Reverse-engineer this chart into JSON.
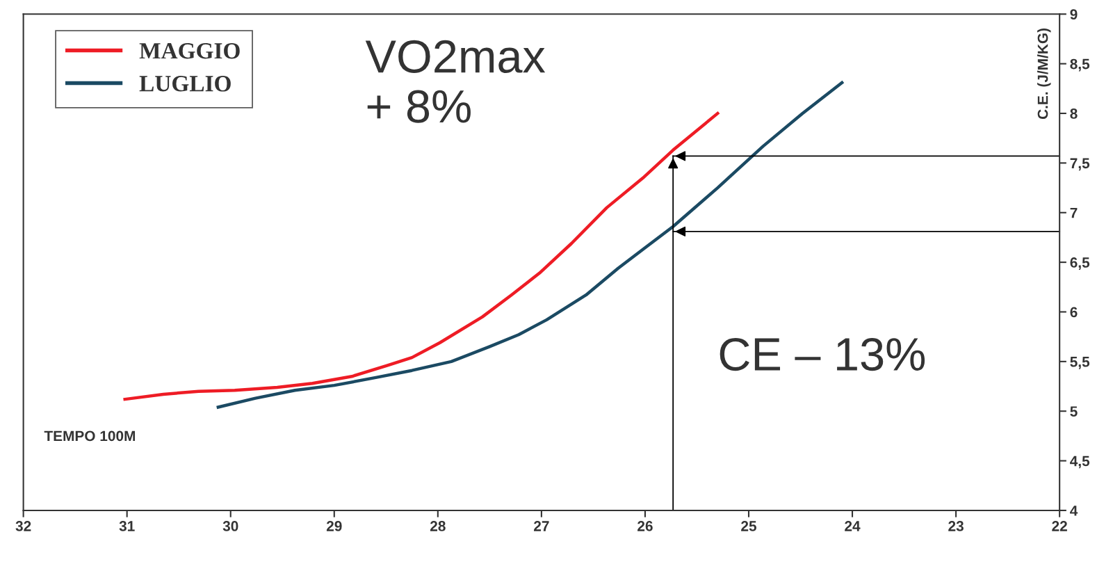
{
  "chart_data": {
    "type": "line",
    "xlabel": "TEMPO 100M",
    "ylabel": "C.E. (J/M/KG)",
    "xlim": [
      32,
      22
    ],
    "xticks": [
      32,
      31,
      30,
      29,
      28,
      27,
      26,
      25,
      24,
      23,
      22
    ],
    "ylim": [
      4,
      9
    ],
    "yticks": [
      4,
      {
        "value": 4.5,
        "label": "4,5"
      },
      5,
      {
        "value": 5.5,
        "label": "5,5"
      },
      6,
      {
        "value": 6.5,
        "label": "6,5"
      },
      7,
      {
        "value": 7.5,
        "label": "7,5"
      },
      8,
      {
        "value": 8.5,
        "label": "8,5"
      },
      9
    ],
    "grid": false,
    "legend": "top left",
    "marker": "none",
    "line_style": "solid",
    "series": [
      {
        "name": "MAGGIO",
        "color": "#ee1c25",
        "x": [
          31.02,
          30.65,
          30.31,
          29.96,
          29.55,
          29.21,
          28.83,
          28.49,
          28.25,
          27.98,
          27.57,
          27.29,
          27.02,
          26.71,
          26.37,
          26.02,
          25.73,
          25.3
        ],
        "values": [
          5.12,
          5.17,
          5.2,
          5.21,
          5.24,
          5.28,
          5.35,
          5.46,
          5.54,
          5.69,
          5.95,
          6.17,
          6.39,
          6.69,
          7.05,
          7.35,
          7.63,
          8.0
        ]
      },
      {
        "name": "LUGLIO",
        "color": "#1b4a63",
        "x": [
          30.12,
          29.76,
          29.38,
          29.0,
          28.59,
          28.25,
          27.87,
          27.5,
          27.22,
          26.95,
          26.57,
          26.26,
          26.02,
          25.73,
          25.3,
          24.86,
          24.48,
          24.1
        ],
        "values": [
          5.04,
          5.13,
          5.21,
          5.26,
          5.34,
          5.41,
          5.5,
          5.65,
          5.77,
          5.92,
          6.17,
          6.44,
          6.63,
          6.86,
          7.25,
          7.67,
          8.0,
          8.31
        ]
      }
    ],
    "ref_lines": [
      {
        "axis": "x",
        "value": 25.73,
        "color": "#000000"
      },
      {
        "axis": "y",
        "value": 7.57,
        "color": "#000000"
      },
      {
        "axis": "y",
        "value": 6.81,
        "color": "#000000"
      }
    ],
    "annotations": [
      "VO2max\n+ 8%",
      "CE – 13%"
    ]
  }
}
